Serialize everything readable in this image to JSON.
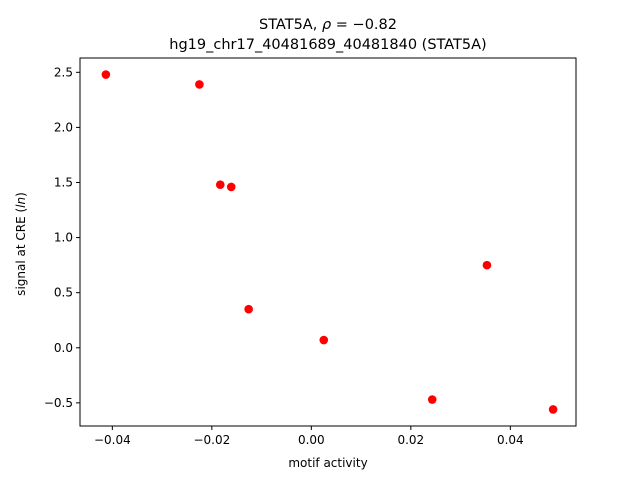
{
  "chart_data": {
    "type": "scatter",
    "title_parts": {
      "prefix": "STAT5A, ",
      "rho": "ρ",
      "equals": " = ",
      "value": "−0.82"
    },
    "subtitle": "hg19_chr17_40481689_40481840 (STAT5A)",
    "xlabel": "motif activity",
    "ylabel_prefix": "signal at CRE (",
    "ylabel_italic": "ln",
    "ylabel_suffix": ")",
    "xlim": [
      -0.0465,
      0.0532
    ],
    "ylim": [
      -0.71,
      2.63
    ],
    "x_ticks": [
      {
        "value": -0.04,
        "label": "−0.04"
      },
      {
        "value": -0.02,
        "label": "−0.02"
      },
      {
        "value": 0.0,
        "label": "0.00"
      },
      {
        "value": 0.02,
        "label": "0.02"
      },
      {
        "value": 0.04,
        "label": "0.04"
      }
    ],
    "y_ticks": [
      {
        "value": -0.5,
        "label": "−0.5"
      },
      {
        "value": 0.0,
        "label": "0.0"
      },
      {
        "value": 0.5,
        "label": "0.5"
      },
      {
        "value": 1.0,
        "label": "1.0"
      },
      {
        "value": 1.5,
        "label": "1.5"
      },
      {
        "value": 2.0,
        "label": "2.0"
      },
      {
        "value": 2.5,
        "label": "2.5"
      }
    ],
    "points": [
      {
        "x": -0.0413,
        "y": 2.48
      },
      {
        "x": -0.0225,
        "y": 2.39
      },
      {
        "x": -0.0183,
        "y": 1.48
      },
      {
        "x": -0.0161,
        "y": 1.46
      },
      {
        "x": -0.0126,
        "y": 0.35
      },
      {
        "x": 0.0025,
        "y": 0.07
      },
      {
        "x": 0.0243,
        "y": -0.47
      },
      {
        "x": 0.0353,
        "y": 0.75
      },
      {
        "x": 0.0486,
        "y": -0.56
      }
    ],
    "marker_color": "#ff0000",
    "grid": false,
    "legend": "none"
  }
}
